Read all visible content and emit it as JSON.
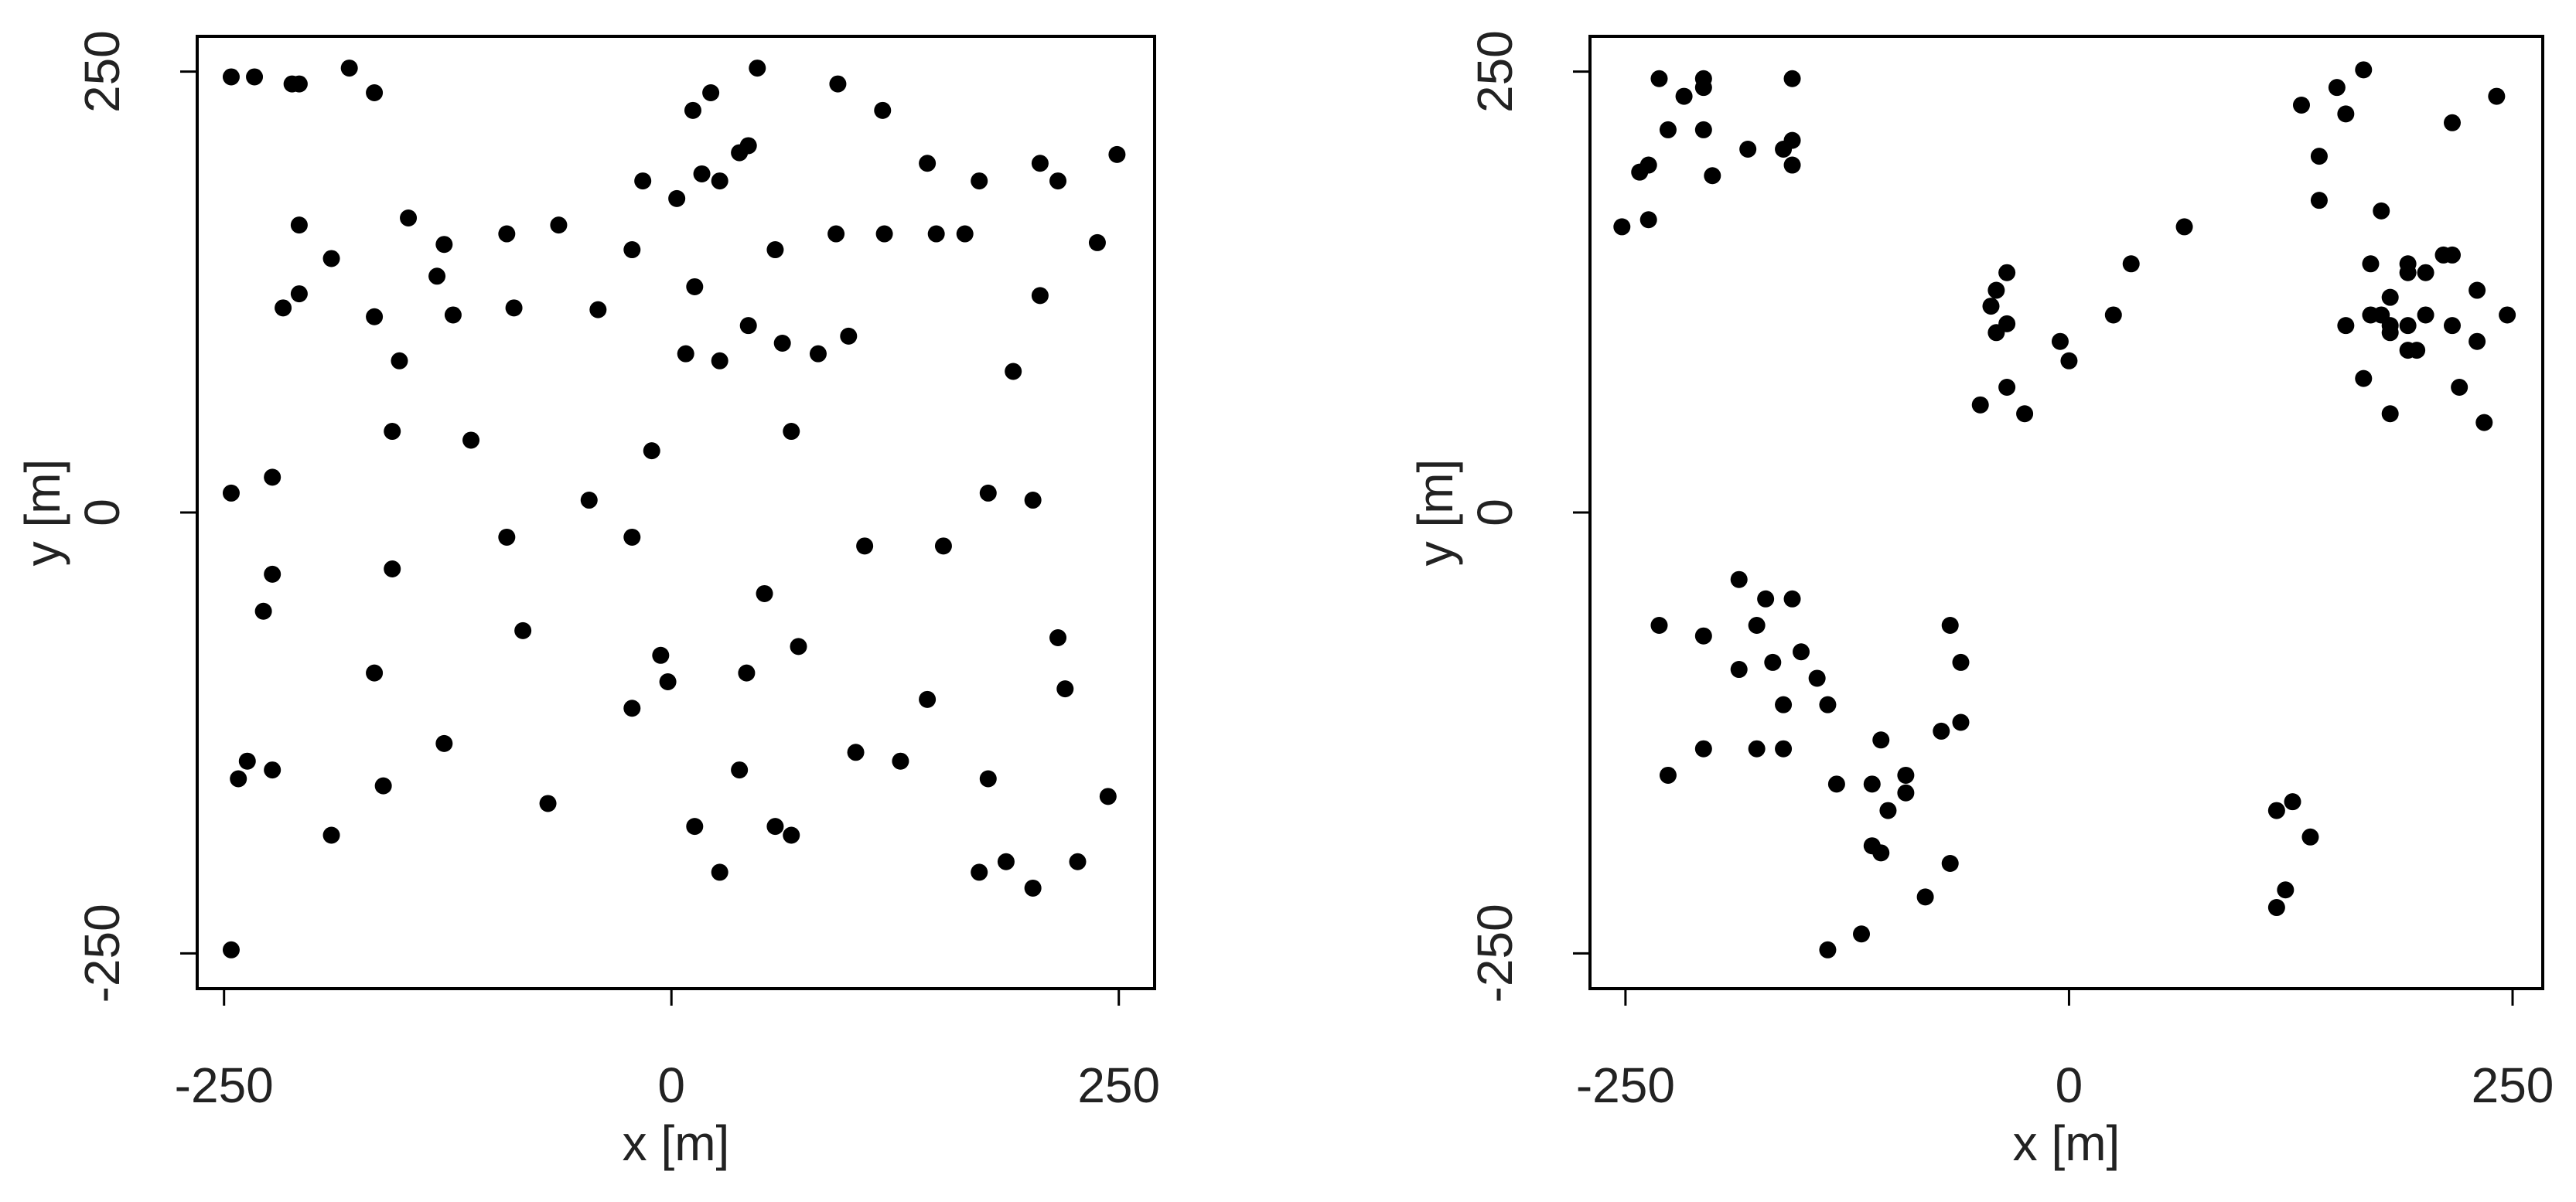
{
  "chart_data": [
    {
      "type": "scatter",
      "xlabel": "x [m]",
      "ylabel": "y [m]",
      "color": "#000000",
      "xlim": [
        -265,
        270
      ],
      "ylim": [
        -270,
        270
      ],
      "xticks": [
        -250,
        0,
        250
      ],
      "yticks": [
        -250,
        0,
        250
      ],
      "x": [
        -246,
        -233,
        -212,
        -208,
        -180,
        -166,
        -208,
        -217,
        -208,
        -190,
        -166,
        -147,
        -127,
        -131,
        -122,
        -152,
        -156,
        -112,
        -92,
        -88,
        -63,
        -41,
        -22,
        -16,
        3,
        12,
        22,
        17,
        27,
        38,
        43,
        48,
        93,
        118,
        58,
        92,
        119,
        143,
        148,
        164,
        172,
        206,
        216,
        249,
        238,
        206,
        8,
        13,
        27,
        43,
        62,
        82,
        99,
        67,
        191,
        -246,
        -223,
        -223,
        -228,
        -156,
        -166,
        -83,
        -92,
        -11,
        -46,
        -22,
        -6,
        -2,
        -22,
        42,
        52,
        71,
        38,
        108,
        152,
        177,
        202,
        216,
        220,
        143,
        103,
        128,
        177,
        244,
        -242,
        -237,
        -223,
        -127,
        -161,
        -190,
        -69,
        13,
        58,
        67,
        27,
        172,
        187,
        202,
        227,
        -246
      ],
      "values": [
        247,
        247,
        243,
        243,
        252,
        238,
        163,
        116,
        124,
        144,
        111,
        167,
        152,
        134,
        112,
        86,
        46,
        41,
        158,
        116,
        163,
        115,
        149,
        188,
        178,
        228,
        238,
        192,
        188,
        204,
        208,
        252,
        243,
        228,
        149,
        158,
        158,
        198,
        158,
        158,
        188,
        198,
        188,
        203,
        153,
        123,
        90,
        128,
        86,
        106,
        96,
        90,
        100,
        46,
        80,
        11,
        20,
        -35,
        -56,
        -32,
        -91,
        -67,
        -14,
        35,
        7,
        -14,
        -81,
        -96,
        -111,
        -91,
        -46,
        -76,
        -146,
        -19,
        -19,
        11,
        7,
        -71,
        -100,
        -106,
        -136,
        -141,
        -151,
        -161,
        -151,
        -141,
        -146,
        -131,
        -155,
        -183,
        -165,
        -178,
        -178,
        -183,
        -204,
        -204,
        -198,
        -213,
        -198,
        -248
      ]
    },
    {
      "type": "scatter",
      "xlabel": "x [m]",
      "ylabel": "y [m]",
      "color": "#000000",
      "xlim": [
        -270,
        267
      ],
      "ylim": [
        -270,
        270
      ],
      "xticks": [
        -250,
        0,
        250
      ],
      "yticks": [
        -250,
        0,
        250
      ],
      "x": [
        -231,
        -206,
        -206,
        -217,
        -226,
        -206,
        -201,
        -181,
        -156,
        -161,
        -156,
        -156,
        -242,
        -237,
        -237,
        -252,
        131,
        151,
        166,
        156,
        216,
        241,
        141,
        141,
        176,
        170,
        191,
        201,
        191,
        211,
        216,
        230,
        247,
        230,
        220,
        234,
        216,
        201,
        191,
        181,
        181,
        176,
        170,
        156,
        191,
        196,
        181,
        166,
        181,
        65,
        35,
        25,
        -5,
        0,
        -35,
        -41,
        -44,
        -35,
        -41,
        -35,
        -25,
        -50,
        -186,
        -171,
        -156,
        -176,
        -231,
        -206,
        -186,
        -167,
        -151,
        -142,
        -161,
        -136,
        -67,
        -61,
        -61,
        -72,
        -206,
        -176,
        -161,
        -226,
        -106,
        -92,
        -92,
        -131,
        -111,
        -102,
        -111,
        -106,
        -67,
        -81,
        -117,
        -136,
        117,
        126,
        136,
        122,
        117
      ],
      "values": [
        246,
        246,
        241,
        236,
        217,
        217,
        191,
        206,
        246,
        206,
        211,
        197,
        193,
        197,
        166,
        162,
        231,
        241,
        251,
        226,
        221,
        236,
        202,
        177,
        171,
        141,
        141,
        136,
        136,
        146,
        146,
        126,
        112,
        97,
        71,
        51,
        106,
        112,
        106,
        122,
        106,
        112,
        112,
        106,
        92,
        92,
        102,
        76,
        56,
        162,
        141,
        112,
        97,
        86,
        136,
        126,
        117,
        107,
        102,
        71,
        56,
        61,
        -38,
        -49,
        -49,
        -64,
        -64,
        -70,
        -89,
        -85,
        -79,
        -94,
        -109,
        -109,
        -64,
        -85,
        -119,
        -124,
        -134,
        -134,
        -134,
        -149,
        -129,
        -149,
        -159,
        -154,
        -154,
        -169,
        -189,
        -193,
        -199,
        -218,
        -239,
        -248,
        -169,
        -164,
        -184,
        -214,
        -224
      ]
    }
  ]
}
